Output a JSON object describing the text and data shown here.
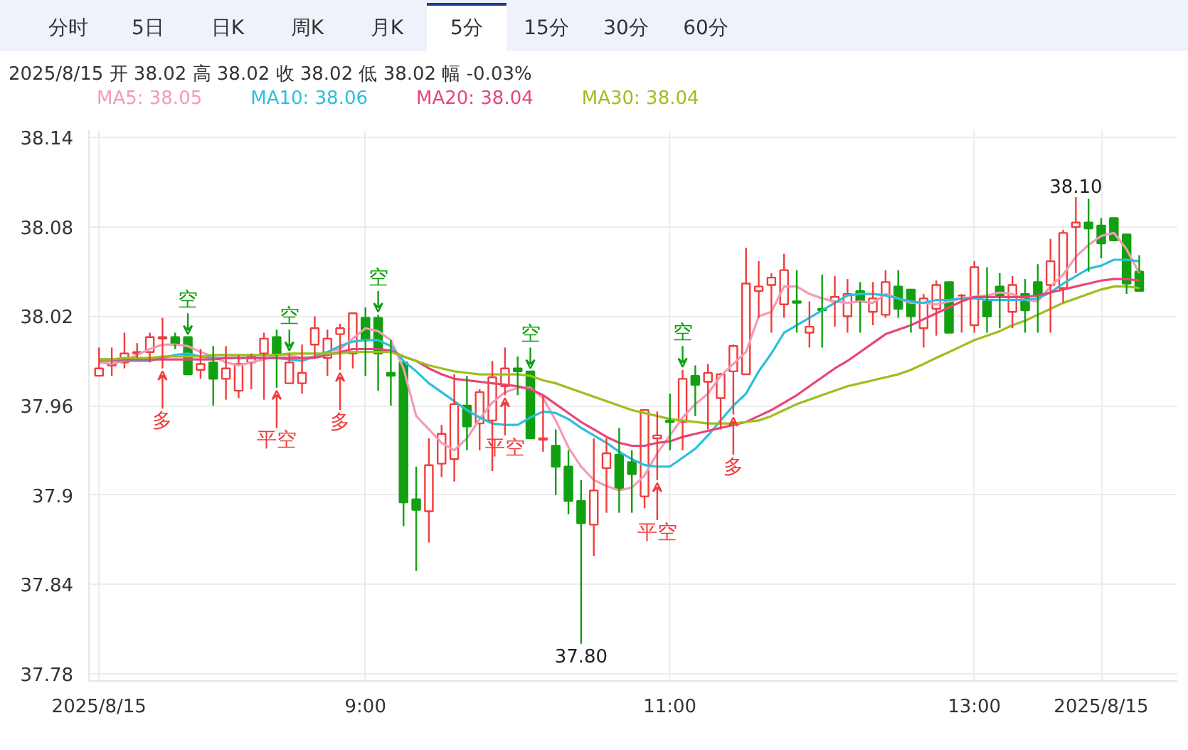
{
  "chart_data": {
    "type": "candlestick",
    "title": "2025/8/15 开 38.02 高 38.02 收 38.02 低 38.02 幅 -0.03%",
    "annotations": [
      "分时",
      "5日",
      "日K",
      "周K",
      "月K",
      "5分",
      "15分",
      "30分",
      "60分",
      {
        "text": "空",
        "x": "2025-08-15T07:50",
        "y": 38.006
      },
      {
        "text": "空",
        "x": "2025-08-15T08:30",
        "y": 37.995
      },
      {
        "text": "空",
        "x": "2025-08-15T09:05",
        "y": 38.021
      },
      {
        "text": "空",
        "x": "2025-08-15T10:05",
        "y": 37.983
      },
      {
        "text": "空",
        "x": "2025-08-15T11:05",
        "y": 37.984
      },
      {
        "text": "多",
        "x": "2025-08-15T07:40",
        "y": 37.985
      },
      {
        "text": "多",
        "x": "2025-08-15T08:50",
        "y": 37.984
      },
      {
        "text": "多",
        "x": "2025-08-15T11:25",
        "y": 37.954
      },
      {
        "text": "平空",
        "x": "2025-08-15T08:25",
        "y": 37.972
      },
      {
        "text": "平空",
        "x": "2025-08-15T09:55",
        "y": 37.967
      },
      {
        "text": "平空",
        "x": "2025-08-15T10:55",
        "y": 37.91
      }
    ],
    "x": [
      "2025-08-15T07:15",
      "2025-08-15T07:20",
      "2025-08-15T07:25",
      "2025-08-15T07:30",
      "2025-08-15T07:35",
      "2025-08-15T07:40",
      "2025-08-15T07:45",
      "2025-08-15T07:50",
      "2025-08-15T07:55",
      "2025-08-15T08:00",
      "2025-08-15T08:05",
      "2025-08-15T08:10",
      "2025-08-15T08:15",
      "2025-08-15T08:20",
      "2025-08-15T08:25",
      "2025-08-15T08:30",
      "2025-08-15T08:35",
      "2025-08-15T08:40",
      "2025-08-15T08:45",
      "2025-08-15T08:50",
      "2025-08-15T08:55",
      "2025-08-15T09:00",
      "2025-08-15T09:05",
      "2025-08-15T09:10",
      "2025-08-15T09:15",
      "2025-08-15T09:20",
      "2025-08-15T09:25",
      "2025-08-15T09:30",
      "2025-08-15T09:35",
      "2025-08-15T09:40",
      "2025-08-15T09:45",
      "2025-08-15T09:50",
      "2025-08-15T09:55",
      "2025-08-15T10:00",
      "2025-08-15T10:05",
      "2025-08-15T10:10",
      "2025-08-15T10:15",
      "2025-08-15T10:20",
      "2025-08-15T10:25",
      "2025-08-15T10:30",
      "2025-08-15T10:35",
      "2025-08-15T10:40",
      "2025-08-15T10:45",
      "2025-08-15T10:50",
      "2025-08-15T10:55",
      "2025-08-15T11:00",
      "2025-08-15T11:05",
      "2025-08-15T11:10",
      "2025-08-15T11:15",
      "2025-08-15T11:20",
      "2025-08-15T11:25",
      "2025-08-15T11:30",
      "2025-08-15T11:35",
      "2025-08-15T11:40",
      "2025-08-15T11:45",
      "2025-08-15T11:50",
      "2025-08-15T11:55",
      "2025-08-15T12:00",
      "2025-08-15T12:05",
      "2025-08-15T12:10",
      "2025-08-15T12:15",
      "2025-08-15T12:20",
      "2025-08-15T12:25",
      "2025-08-15T12:30",
      "2025-08-15T12:35",
      "2025-08-15T12:40",
      "2025-08-15T12:45",
      "2025-08-15T12:50",
      "2025-08-15T12:55",
      "2025-08-15T13:00",
      "2025-08-15T13:05",
      "2025-08-15T13:10",
      "2025-08-15T13:15",
      "2025-08-15T13:20",
      "2025-08-15T13:25",
      "2025-08-15T13:30",
      "2025-08-15T13:35",
      "2025-08-15T13:40",
      "2025-08-15T13:45",
      "2025-08-15T13:50",
      "2025-08-15T13:55",
      "2025-08-15T14:00",
      "2025-08-15T14:05"
    ],
    "ohlc": [
      [
        37.98,
        37.999,
        37.98,
        37.985
      ],
      [
        37.987,
        37.999,
        37.98,
        37.988
      ],
      [
        37.989,
        38.009,
        37.985,
        37.995
      ],
      [
        37.995,
        38.002,
        37.992,
        37.996
      ],
      [
        37.996,
        38.009,
        37.989,
        38.006
      ],
      [
        38.005,
        38.019,
        37.985,
        38.006
      ],
      [
        38.006,
        38.009,
        37.998,
        38.001
      ],
      [
        38.006,
        38.006,
        37.981,
        37.981
      ],
      [
        37.984,
        37.998,
        37.978,
        37.988
      ],
      [
        37.989,
        38.0,
        37.96,
        37.978
      ],
      [
        37.978,
        38.0,
        37.964,
        37.985
      ],
      [
        37.97,
        37.994,
        37.965,
        37.988
      ],
      [
        37.989,
        37.995,
        37.971,
        37.993
      ],
      [
        37.995,
        38.009,
        37.964,
        38.005
      ],
      [
        38.006,
        38.011,
        37.972,
        37.994
      ],
      [
        37.975,
        37.995,
        37.975,
        37.989
      ],
      [
        37.975,
        38.001,
        37.968,
        37.982
      ],
      [
        38.001,
        38.02,
        37.992,
        38.012
      ],
      [
        37.992,
        38.011,
        37.98,
        38.005
      ],
      [
        38.008,
        38.015,
        37.984,
        38.012
      ],
      [
        37.995,
        38.022,
        37.985,
        38.022
      ],
      [
        38.019,
        38.026,
        37.98,
        38.004
      ],
      [
        38.019,
        38.021,
        37.97,
        37.995
      ],
      [
        37.982,
        38.004,
        37.96,
        37.98
      ],
      [
        37.989,
        37.989,
        37.879,
        37.895
      ],
      [
        37.897,
        37.919,
        37.849,
        37.89
      ],
      [
        37.889,
        37.938,
        37.868,
        37.92
      ],
      [
        37.921,
        37.947,
        37.912,
        37.941
      ],
      [
        37.924,
        37.981,
        37.909,
        37.961
      ],
      [
        37.96,
        37.98,
        37.93,
        37.946
      ],
      [
        37.948,
        37.971,
        37.93,
        37.969
      ],
      [
        37.95,
        37.99,
        37.916,
        37.979
      ],
      [
        37.973,
        37.999,
        37.967,
        37.985
      ],
      [
        37.985,
        37.993,
        37.967,
        37.983
      ],
      [
        37.983,
        37.983,
        37.938,
        37.938
      ],
      [
        37.937,
        37.967,
        37.929,
        37.938
      ],
      [
        37.933,
        37.944,
        37.9,
        37.919
      ],
      [
        37.919,
        37.93,
        37.887,
        37.896
      ],
      [
        37.896,
        37.91,
        37.8,
        37.881
      ],
      [
        37.88,
        37.938,
        37.859,
        37.903
      ],
      [
        37.918,
        37.938,
        37.888,
        37.928
      ],
      [
        37.927,
        37.945,
        37.888,
        37.904
      ],
      [
        37.922,
        37.93,
        37.888,
        37.914
      ],
      [
        37.899,
        37.957,
        37.891,
        37.957
      ],
      [
        37.938,
        37.956,
        37.91,
        37.94
      ],
      [
        37.95,
        37.968,
        37.93,
        37.949
      ],
      [
        37.949,
        37.984,
        37.93,
        37.978
      ],
      [
        37.98,
        37.987,
        37.953,
        37.974
      ],
      [
        37.976,
        37.988,
        37.944,
        37.982
      ],
      [
        37.965,
        37.982,
        37.944,
        37.981
      ],
      [
        37.983,
        38.001,
        37.954,
        38.0
      ],
      [
        37.981,
        38.066,
        37.981,
        38.042
      ],
      [
        38.037,
        38.057,
        38.019,
        38.04
      ],
      [
        38.041,
        38.049,
        38.009,
        38.046
      ],
      [
        38.028,
        38.062,
        38.019,
        38.051
      ],
      [
        38.03,
        38.051,
        38.009,
        38.029
      ],
      [
        38.009,
        38.03,
        37.999,
        38.013
      ],
      [
        38.025,
        38.048,
        37.999,
        38.024
      ],
      [
        38.03,
        38.047,
        38.013,
        38.033
      ],
      [
        38.02,
        38.045,
        38.009,
        38.035
      ],
      [
        38.037,
        38.043,
        38.009,
        38.03
      ],
      [
        38.023,
        38.043,
        38.014,
        38.032
      ],
      [
        38.021,
        38.051,
        38.019,
        38.043
      ],
      [
        38.04,
        38.051,
        38.019,
        38.025
      ],
      [
        38.038,
        38.038,
        38.009,
        38.02
      ],
      [
        38.012,
        38.035,
        37.999,
        38.032
      ],
      [
        38.025,
        38.044,
        38.007,
        38.041
      ],
      [
        38.043,
        38.043,
        38.009,
        38.009
      ],
      [
        38.034,
        38.035,
        38.009,
        38.034
      ],
      [
        38.014,
        38.057,
        38.009,
        38.053
      ],
      [
        38.03,
        38.053,
        38.009,
        38.02
      ],
      [
        38.04,
        38.049,
        38.012,
        38.034
      ],
      [
        38.023,
        38.047,
        38.012,
        38.041
      ],
      [
        38.035,
        38.045,
        38.009,
        38.024
      ],
      [
        38.043,
        38.055,
        38.009,
        38.034
      ],
      [
        38.041,
        38.072,
        38.009,
        38.057
      ],
      [
        38.039,
        38.078,
        38.029,
        38.076
      ],
      [
        38.08,
        38.1,
        38.049,
        38.083
      ],
      [
        38.083,
        38.099,
        38.05,
        38.079
      ],
      [
        38.081,
        38.086,
        38.059,
        38.069
      ],
      [
        38.086,
        38.086,
        38.071,
        38.071
      ],
      [
        38.075,
        38.075,
        38.035,
        38.042
      ],
      [
        38.05,
        38.061,
        38.037,
        38.037
      ]
    ],
    "value_labels": [
      null,
      null,
      null,
      null,
      null,
      null,
      null,
      null,
      null,
      null,
      null,
      null,
      null,
      null,
      null,
      null,
      null,
      null,
      null,
      null,
      null,
      null,
      null,
      null,
      null,
      null,
      null,
      null,
      null,
      null,
      null,
      null,
      null,
      null,
      null,
      null,
      null,
      null,
      "37.80",
      null,
      null,
      null,
      null,
      null,
      null,
      null,
      null,
      null,
      null,
      null,
      null,
      null,
      null,
      null,
      null,
      null,
      null,
      null,
      null,
      null,
      null,
      null,
      null,
      null,
      null,
      null,
      null,
      null,
      null,
      null,
      null,
      null,
      null,
      null,
      null,
      null,
      null,
      "38.10",
      null,
      null,
      null,
      null,
      null
    ],
    "colors": [
      "#f23c3c",
      "#f23c3c",
      "#f23c3c",
      "#f23c3c",
      "#f23c3c",
      "#f23c3c",
      "#11a011",
      "#11a011",
      "#f23c3c",
      "#11a011",
      "#f23c3c",
      "#f23c3c",
      "#f23c3c",
      "#f23c3c",
      "#11a011",
      "#f23c3c",
      "#f23c3c",
      "#f23c3c",
      "#f23c3c",
      "#f23c3c",
      "#f23c3c",
      "#11a011",
      "#11a011",
      "#11a011",
      "#11a011",
      "#11a011",
      "#f23c3c",
      "#f23c3c",
      "#f23c3c",
      "#11a011",
      "#f23c3c",
      "#f23c3c",
      "#f23c3c",
      "#11a011",
      "#11a011",
      "#f23c3c",
      "#11a011",
      "#11a011",
      "#11a011",
      "#f23c3c",
      "#f23c3c",
      "#11a011",
      "#11a011",
      "#f23c3c",
      "#f23c3c",
      "#11a011",
      "#f23c3c",
      "#11a011",
      "#f23c3c",
      "#f23c3c",
      "#f23c3c",
      "#f23c3c",
      "#f23c3c",
      "#f23c3c",
      "#f23c3c",
      "#11a011",
      "#f23c3c",
      "#11a011",
      "#f23c3c",
      "#f23c3c",
      "#11a011",
      "#f23c3c",
      "#f23c3c",
      "#11a011",
      "#11a011",
      "#f23c3c",
      "#f23c3c",
      "#11a011",
      "#f23c3c",
      "#f23c3c",
      "#11a011",
      "#11a011",
      "#f23c3c",
      "#11a011",
      "#11a011",
      "#f23c3c",
      "#f23c3c",
      "#f23c3c",
      "#11a011",
      "#11a011",
      "#11a011",
      "#11a011",
      "#11a011"
    ],
    "series": [
      {
        "type": "line",
        "name": "MA5: 38.05",
        "color": "#f59ab6",
        "values": [
          37.989,
          37.988,
          37.99,
          37.994,
          37.998,
          38.001,
          38.001,
          38.0,
          37.996,
          37.993,
          37.989,
          37.987,
          37.989,
          37.991,
          37.994,
          37.994,
          37.992,
          37.993,
          37.996,
          37.998,
          38.005,
          38.012,
          38.01,
          38.004,
          37.985,
          37.953,
          37.944,
          37.935,
          37.93,
          37.938,
          37.951,
          37.962,
          37.969,
          37.972,
          37.972,
          37.965,
          37.95,
          37.932,
          37.919,
          37.91,
          37.906,
          37.903,
          37.905,
          37.913,
          37.928,
          37.94,
          37.952,
          37.961,
          37.968,
          37.98,
          37.988,
          37.996,
          38.02,
          38.023,
          38.04,
          38.04,
          38.035,
          38.032,
          38.03,
          38.029,
          38.03,
          38.029,
          38.035,
          38.032,
          38.029,
          38.029,
          38.028,
          38.03,
          38.032,
          38.033,
          38.034,
          38.036,
          38.035,
          38.031,
          38.03,
          38.04,
          38.048,
          38.06,
          38.068,
          38.074,
          38.076,
          38.065,
          38.049
        ]
      },
      {
        "type": "line",
        "name": "MA10: 38.06",
        "color": "#2bbfdc",
        "values": [
          37.99,
          37.99,
          37.99,
          37.99,
          37.99,
          37.992,
          37.994,
          37.995,
          37.993,
          37.992,
          37.992,
          37.992,
          37.992,
          37.992,
          37.992,
          37.991,
          37.99,
          37.993,
          37.996,
          38.0,
          38.003,
          38.004,
          38.004,
          38.0,
          37.99,
          37.983,
          37.975,
          37.969,
          37.963,
          37.957,
          37.952,
          37.948,
          37.947,
          37.947,
          37.952,
          37.956,
          37.955,
          37.951,
          37.945,
          37.94,
          37.935,
          37.929,
          37.924,
          37.92,
          37.919,
          37.919,
          37.925,
          37.931,
          37.94,
          37.95,
          37.96,
          37.968,
          37.983,
          37.995,
          38.009,
          38.014,
          38.019,
          38.024,
          38.029,
          38.034,
          38.035,
          38.035,
          38.034,
          38.032,
          38.03,
          38.029,
          38.031,
          38.031,
          38.032,
          38.032,
          38.031,
          38.031,
          38.031,
          38.031,
          38.032,
          38.036,
          38.042,
          38.047,
          38.052,
          38.054,
          38.058,
          38.058,
          38.057
        ]
      },
      {
        "type": "line",
        "name": "MA20: 38.04",
        "color": "#e8457a",
        "values": [
          37.991,
          37.991,
          37.991,
          37.991,
          37.991,
          37.991,
          37.991,
          37.991,
          37.991,
          37.991,
          37.992,
          37.992,
          37.992,
          37.992,
          37.992,
          37.992,
          37.992,
          37.992,
          37.994,
          37.996,
          37.998,
          37.998,
          37.998,
          37.997,
          37.993,
          37.99,
          37.985,
          37.981,
          37.978,
          37.977,
          37.976,
          37.975,
          37.974,
          37.973,
          37.971,
          37.967,
          37.961,
          37.955,
          37.949,
          37.944,
          37.939,
          37.935,
          37.933,
          37.933,
          37.935,
          37.936,
          37.939,
          37.941,
          37.943,
          37.945,
          37.947,
          37.949,
          37.953,
          37.957,
          37.962,
          37.967,
          37.973,
          37.979,
          37.985,
          37.99,
          37.996,
          38.002,
          38.008,
          38.011,
          38.014,
          38.018,
          38.022,
          38.026,
          38.03,
          38.033,
          38.033,
          38.033,
          38.033,
          38.033,
          38.034,
          38.036,
          38.038,
          38.04,
          38.042,
          38.044,
          38.045,
          38.045,
          38.044
        ]
      },
      {
        "type": "line",
        "name": "MA30: 38.04",
        "color": "#9cbf1e",
        "values": [
          37.991,
          37.991,
          37.992,
          37.992,
          37.992,
          37.993,
          37.993,
          37.993,
          37.993,
          37.994,
          37.994,
          37.994,
          37.994,
          37.994,
          37.994,
          37.995,
          37.995,
          37.995,
          37.995,
          37.995,
          37.996,
          37.996,
          37.996,
          37.996,
          37.993,
          37.99,
          37.987,
          37.985,
          37.983,
          37.982,
          37.981,
          37.981,
          37.981,
          37.981,
          37.98,
          37.977,
          37.975,
          37.972,
          37.969,
          37.966,
          37.963,
          37.96,
          37.957,
          37.955,
          37.953,
          37.951,
          37.95,
          37.949,
          37.948,
          37.948,
          37.948,
          37.949,
          37.95,
          37.953,
          37.957,
          37.961,
          37.964,
          37.967,
          37.97,
          37.973,
          37.975,
          37.977,
          37.979,
          37.981,
          37.984,
          37.988,
          37.992,
          37.996,
          38.0,
          38.004,
          38.007,
          38.01,
          38.014,
          38.017,
          38.021,
          38.025,
          38.029,
          38.032,
          38.035,
          38.038,
          38.04,
          38.04,
          38.039
        ]
      }
    ],
    "xlim": [
      "2025-08-15T07:11",
      "2025-08-15T14:20"
    ],
    "xticks": [
      {
        "value": "2025-08-15T07:15",
        "label": "2025/8/15"
      },
      {
        "value": "2025-08-15T09:00",
        "label": "9:00"
      },
      {
        "value": "2025-08-15T11:00",
        "label": "11:00"
      },
      {
        "value": "2025-08-15T13:00",
        "label": "13:00"
      },
      {
        "value": "2025-08-15T13:50",
        "label": "2025/8/15"
      }
    ],
    "ylim": [
      37.775,
      38.145
    ],
    "yticks": [
      37.78,
      37.84,
      37.9,
      37.96,
      38.02,
      38.08,
      38.14
    ],
    "grid": true
  }
}
